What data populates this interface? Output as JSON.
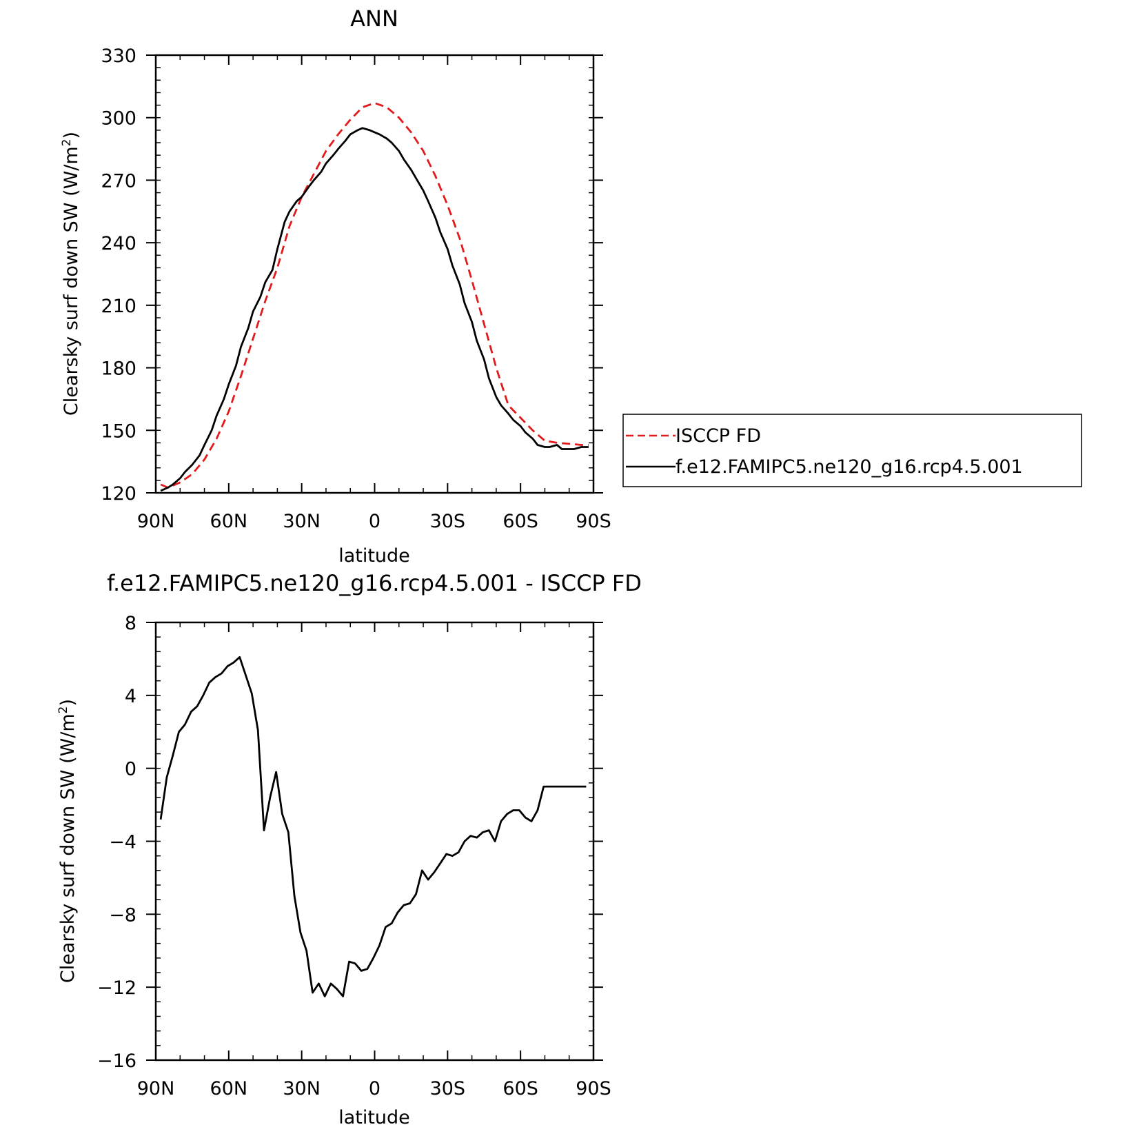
{
  "chart_data": [
    {
      "type": "line",
      "title": "ANN",
      "xlabel": "latitude",
      "ylabel": "Clearsky surf down SW (W/m",
      "ylabel_sup": "2",
      "ylabel_close": ")",
      "xlim": [
        90,
        -90
      ],
      "ylim": [
        120,
        330
      ],
      "xticks": [
        90,
        60,
        30,
        0,
        -30,
        -60,
        -90
      ],
      "xtick_labels": [
        "90N",
        "60N",
        "30N",
        "0",
        "30S",
        "60S",
        "90S"
      ],
      "yticks": [
        120,
        150,
        180,
        210,
        240,
        270,
        300,
        330
      ],
      "ytick_labels": [
        "120",
        "150",
        "180",
        "210",
        "240",
        "270",
        "300",
        "330"
      ],
      "grid": false,
      "legend_position": "right",
      "series": [
        {
          "name": "ISCCP FD",
          "color": "#e31a1c",
          "dash": true,
          "x": [
            88,
            85,
            80,
            75,
            70,
            65,
            60,
            55,
            50,
            45,
            40,
            35,
            30,
            25,
            20,
            15,
            10,
            5,
            0,
            -5,
            -10,
            -15,
            -20,
            -25,
            -30,
            -35,
            -40,
            -45,
            -50,
            -55,
            -60,
            -65,
            -70,
            -75,
            -80,
            -85,
            -88
          ],
          "y": [
            124,
            122.5,
            125,
            129,
            136,
            146,
            159,
            176,
            194,
            212,
            228,
            248,
            262,
            273,
            284,
            292,
            299,
            305,
            307,
            305,
            300,
            293,
            284,
            272,
            258,
            242,
            222,
            201,
            180,
            162,
            156,
            150,
            145,
            144,
            143.5,
            143,
            143
          ]
        },
        {
          "name": "f.e12.FAMIPC5.ne120_g16.rcp4.5.001",
          "color": "#000000",
          "dash": false,
          "x": [
            88,
            85,
            83,
            80,
            78,
            75,
            72,
            70,
            67,
            65,
            62,
            60,
            57,
            55,
            52,
            50,
            47,
            45,
            42,
            40,
            37,
            35,
            32,
            30,
            27,
            25,
            22,
            20,
            17,
            15,
            12,
            10,
            7,
            5,
            2,
            0,
            -2,
            -5,
            -7,
            -10,
            -12,
            -15,
            -17,
            -20,
            -22,
            -25,
            -27,
            -30,
            -32,
            -35,
            -37,
            -40,
            -42,
            -45,
            -47,
            -50,
            -52,
            -55,
            -57,
            -60,
            -62,
            -65,
            -67,
            -70,
            -72,
            -75,
            -77,
            -80,
            -82,
            -85,
            -88
          ],
          "y": [
            121,
            122.5,
            124,
            127,
            130,
            133.5,
            138,
            143,
            150,
            157,
            165,
            172,
            181,
            190,
            199,
            207,
            214,
            221,
            227,
            237,
            250,
            255,
            260,
            262,
            267,
            270,
            274,
            278,
            282,
            285,
            289,
            292,
            294,
            295,
            294,
            293,
            292,
            290,
            288,
            284,
            280,
            275,
            271,
            265,
            260,
            252,
            245,
            237,
            229,
            220,
            211,
            202,
            193,
            184,
            175,
            166,
            162,
            158,
            155,
            152,
            149,
            146,
            143,
            142,
            142,
            143,
            141,
            141,
            141,
            142,
            142
          ]
        }
      ]
    },
    {
      "type": "line",
      "title": "f.e12.FAMIPC5.ne120_g16.rcp4.5.001 - ISCCP FD",
      "xlabel": "latitude",
      "ylabel": "Clearsky surf down SW (W/m",
      "ylabel_sup": "2",
      "ylabel_close": ")",
      "xlim": [
        90,
        -90
      ],
      "ylim": [
        -16,
        8
      ],
      "xticks": [
        90,
        60,
        30,
        0,
        -30,
        -60,
        -90
      ],
      "xtick_labels": [
        "90N",
        "60N",
        "30N",
        "0",
        "30S",
        "60S",
        "90S"
      ],
      "yticks": [
        -16,
        -12,
        -8,
        -4,
        0,
        4,
        8
      ],
      "ytick_labels": [
        "−16",
        "−12",
        "−8",
        "−4",
        "0",
        "4",
        "8"
      ],
      "grid": false,
      "series": [
        {
          "color": "#000000",
          "x": [
            88,
            85.5,
            83,
            80.5,
            78,
            75.5,
            73,
            70.5,
            68,
            65.5,
            63,
            60.5,
            58,
            55.5,
            53,
            50.5,
            48,
            45.5,
            43,
            40.5,
            38,
            35.5,
            33,
            30.5,
            28,
            25.5,
            23,
            20.5,
            18,
            15.5,
            13,
            10.5,
            8,
            5.5,
            3,
            0.5,
            -2,
            -4.5,
            -7,
            -9.5,
            -12,
            -14.5,
            -17,
            -19.5,
            -22,
            -24.5,
            -27,
            -29.5,
            -32,
            -34.5,
            -37,
            -39.5,
            -42,
            -44.5,
            -47,
            -49.5,
            -52,
            -54.5,
            -57,
            -59.5,
            -62,
            -64.5,
            -67,
            -69.5,
            -72,
            -74.5,
            -77,
            -79.5,
            -82,
            -84.5,
            -87
          ],
          "y": [
            -2.8,
            -0.5,
            0.7,
            2.0,
            2.4,
            3.1,
            3.4,
            4.0,
            4.7,
            5.0,
            5.2,
            5.6,
            5.8,
            6.1,
            5.1,
            4.1,
            2.1,
            -3.4,
            -1.6,
            -0.2,
            -2.5,
            -3.5,
            -7.0,
            -9.0,
            -10.0,
            -12.3,
            -11.8,
            -12.5,
            -11.8,
            -12.1,
            -12.5,
            -10.6,
            -10.7,
            -11.1,
            -11.0,
            -10.4,
            -9.7,
            -8.7,
            -8.5,
            -7.9,
            -7.5,
            -7.4,
            -6.9,
            -5.6,
            -6.1,
            -5.7,
            -5.2,
            -4.7,
            -4.8,
            -4.6,
            -4.0,
            -3.7,
            -3.8,
            -3.5,
            -3.4,
            -4.0,
            -2.9,
            -2.5,
            -2.3,
            -2.3,
            -2.7,
            -2.9,
            -2.3,
            -1.0,
            -1.0,
            -1.0,
            -1.0,
            -1.0,
            -1.0,
            -1.0,
            -1.0
          ]
        }
      ]
    }
  ]
}
